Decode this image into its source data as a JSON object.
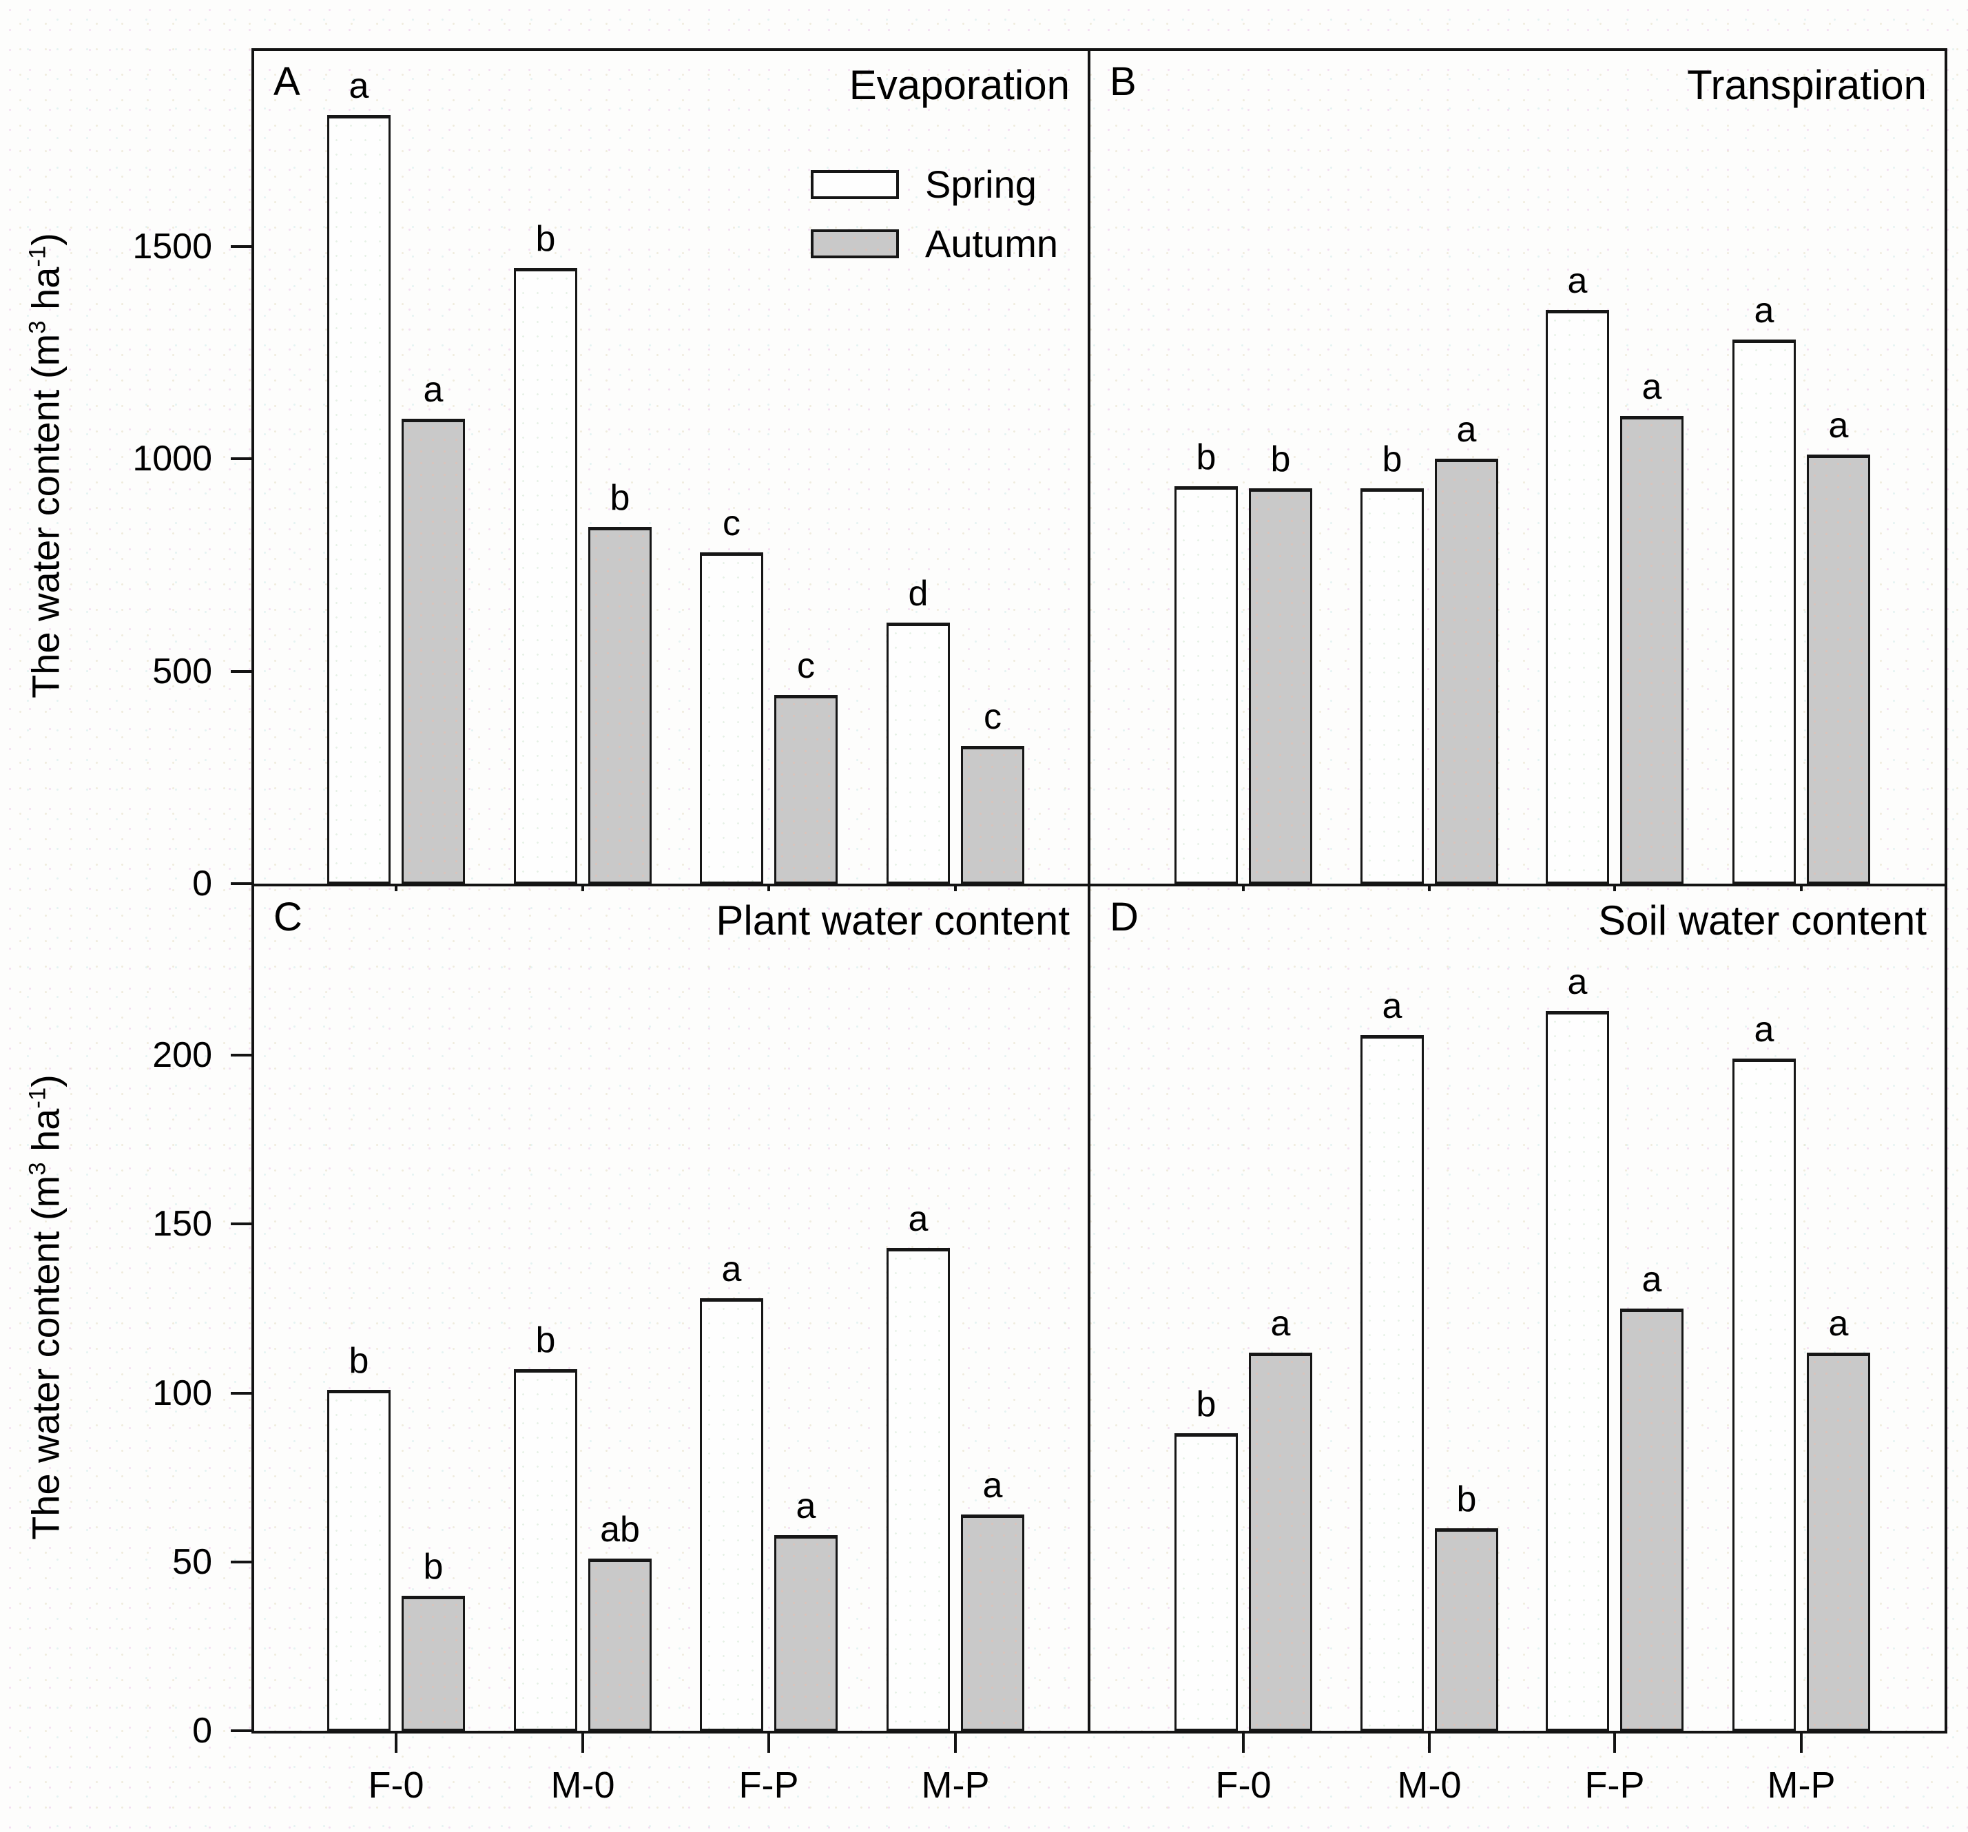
{
  "figure": {
    "background": "#fdfdfc",
    "frame_color": "#131313",
    "bar_colors": {
      "spring": "#fefefe",
      "autumn": "#c9c9c9"
    }
  },
  "y_axis": {
    "label_parts": {
      "p1": "The water content (m",
      "sup1": "3",
      "p2": " ha",
      "sup2": "-1",
      "p3": ")"
    }
  },
  "legend": {
    "items": [
      {
        "label": "Spring",
        "key": "spring"
      },
      {
        "label": "Autumn",
        "key": "autumn"
      }
    ],
    "position": "inside panel A, upper right area"
  },
  "categories": [
    "F-0",
    "M-0",
    "F-P",
    "M-P"
  ],
  "chart_data": [
    {
      "panel": "A",
      "title": "Evaporation",
      "type": "bar",
      "categories": [
        "F-0",
        "M-0",
        "F-P",
        "M-P"
      ],
      "ylim": [
        0,
        1960
      ],
      "yticks": [
        0,
        500,
        1000,
        1500
      ],
      "grid": false,
      "series": [
        {
          "name": "Spring",
          "values": [
            1810,
            1450,
            780,
            615
          ],
          "letters": [
            "a",
            "b",
            "c",
            "d"
          ]
        },
        {
          "name": "Autumn",
          "values": [
            1095,
            840,
            445,
            325
          ],
          "letters": [
            "a",
            "b",
            "c",
            "c"
          ]
        }
      ]
    },
    {
      "panel": "B",
      "title": "Transpiration",
      "type": "bar",
      "categories": [
        "F-0",
        "M-0",
        "F-P",
        "M-P"
      ],
      "ylim": [
        0,
        1960
      ],
      "yticks": [
        0,
        500,
        1000,
        1500
      ],
      "grid": false,
      "series": [
        {
          "name": "Spring",
          "values": [
            935,
            930,
            1350,
            1280
          ],
          "letters": [
            "b",
            "b",
            "a",
            "a"
          ]
        },
        {
          "name": "Autumn",
          "values": [
            930,
            1000,
            1100,
            1010
          ],
          "letters": [
            "b",
            "a",
            "a",
            "a"
          ]
        }
      ]
    },
    {
      "panel": "C",
      "title": "Plant water content",
      "type": "bar",
      "categories": [
        "F-0",
        "M-0",
        "F-P",
        "M-P"
      ],
      "ylim": [
        0,
        250
      ],
      "yticks": [
        0,
        50,
        100,
        150,
        200
      ],
      "grid": false,
      "series": [
        {
          "name": "Spring",
          "values": [
            101,
            107,
            128,
            143
          ],
          "letters": [
            "b",
            "b",
            "a",
            "a"
          ]
        },
        {
          "name": "Autumn",
          "values": [
            40,
            51,
            58,
            64
          ],
          "letters": [
            "b",
            "ab",
            "a",
            "a"
          ]
        }
      ]
    },
    {
      "panel": "D",
      "title": "Soil water content",
      "type": "bar",
      "categories": [
        "F-0",
        "M-0",
        "F-P",
        "M-P"
      ],
      "ylim": [
        0,
        250
      ],
      "yticks": [
        0,
        50,
        100,
        150,
        200
      ],
      "grid": false,
      "series": [
        {
          "name": "Spring",
          "values": [
            88,
            206,
            213,
            199
          ],
          "letters": [
            "b",
            "a",
            "a",
            "a"
          ]
        },
        {
          "name": "Autumn",
          "values": [
            112,
            60,
            125,
            112
          ],
          "letters": [
            "a",
            "b",
            "a",
            "a"
          ]
        }
      ]
    }
  ]
}
